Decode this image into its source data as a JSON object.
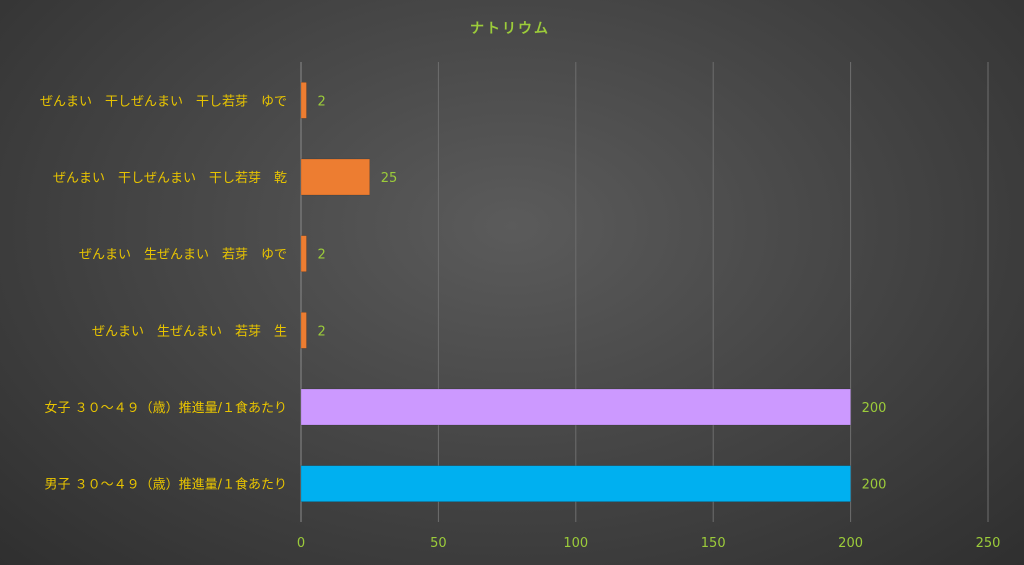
{
  "chart_data": {
    "type": "bar",
    "orientation": "horizontal",
    "title": "ナトリウム",
    "categories": [
      "ぜんまい　干しぜんまい　干し若芽　ゆで",
      "ぜんまい　干しぜんまい　干し若芽　乾",
      "ぜんまい　生ぜんまい　若芽　ゆで",
      "ぜんまい　生ぜんまい　若芽　生",
      "女子 ３０～４９（歳）推進量/１食あたり",
      "男子 ３０～４９（歳）推進量/１食あたり"
    ],
    "values": [
      2,
      25,
      2,
      2,
      200,
      200
    ],
    "data_labels": [
      "2",
      "25",
      "2",
      "2",
      "200",
      "200"
    ],
    "bar_colors": [
      "#ed7d31",
      "#ed7d31",
      "#ed7d31",
      "#ed7d31",
      "#cc99ff",
      "#00b0f0"
    ],
    "xlim": [
      0,
      250
    ],
    "xticks": [
      0,
      50,
      100,
      150,
      200,
      250
    ],
    "grid": true,
    "xlabel": "",
    "ylabel": ""
  },
  "colors": {
    "title": "#9ccc3a",
    "category_text": "#e8c400",
    "tick_text": "#9ccc3a"
  }
}
